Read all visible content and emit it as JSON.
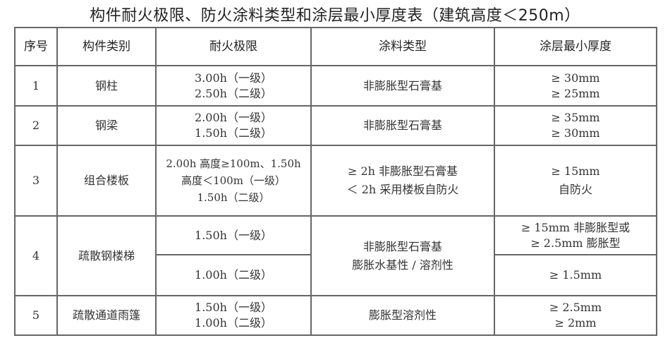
{
  "title": "构件耐火极限、防火涂料类型和涂层最小厚度表（建筑高度＜250m）",
  "headers": [
    "序号",
    "构件类别",
    "耐火极限",
    "涂料类型",
    "涂层最小厚度"
  ],
  "rows": [
    {
      "no": "1",
      "component": "钢柱",
      "fire_limit": [
        "3.00h（一级）",
        "2.50h（二级）"
      ],
      "coating": [
        "非膨胀型石膏基"
      ],
      "thickness": [
        "≥ 30mm",
        "≥ 25mm"
      ]
    },
    {
      "no": "2",
      "component": "钢梁",
      "fire_limit": [
        "2.00h（一级）",
        "1.50h（二级）"
      ],
      "coating": [
        "非膨胀型石膏基"
      ],
      "thickness": [
        "≥ 35mm",
        "≥ 30mm"
      ]
    },
    {
      "no": "3",
      "component": "组合楼板",
      "fire_limit": [
        "2.00h 高度≥100m、1.50h",
        "高度＜100m（一级）",
        "1.50h（二级）"
      ],
      "coating": [
        "≥ 2h 非膨胀型石膏基",
        "＜ 2h 采用楼板自防火"
      ],
      "thickness": [
        "≥ 15mm",
        "自防火"
      ]
    },
    {
      "no": "4",
      "component": "疏散钢楼梯",
      "fire_limit_a": [
        "1.50h（一级）"
      ],
      "fire_limit_b": [
        "1.00h（二级）"
      ],
      "coating": [
        "非膨胀型石膏基",
        "膨胀水基性 / 溶剂性"
      ],
      "thickness_a": [
        "≥ 15mm 非膨胀型或",
        "≥ 2.5mm 膨胀型"
      ],
      "thickness_b": [
        "≥ 1.5mm"
      ]
    },
    {
      "no": "5",
      "component": "疏散通道雨篷",
      "fire_limit": [
        "1.50h（一级）",
        "1.00h（二级）"
      ],
      "coating": [
        "膨胀型溶剂性"
      ],
      "thickness": [
        "≥ 2.5mm",
        "≥ 2mm"
      ]
    }
  ]
}
